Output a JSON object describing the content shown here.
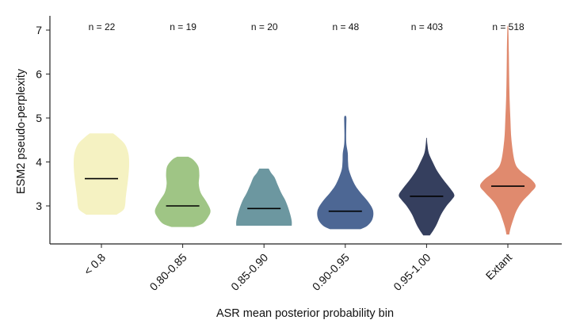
{
  "chart_data": {
    "type": "violin",
    "title": "",
    "xlabel": "ASR mean posterior probability bin",
    "ylabel": "ESM2 pseudo-perplexity",
    "ylim": [
      2.15,
      7.35
    ],
    "yticks": [
      3,
      4,
      5,
      6,
      7
    ],
    "grid": false,
    "categories": [
      "< 0.8",
      "0.80-0.85",
      "0.85-0.90",
      "0.90-0.95",
      "0.95-1.00",
      "Extant"
    ],
    "n_labels": [
      "n = 22",
      "n = 19",
      "n = 20",
      "n = 48",
      "n = 403",
      "n = 518"
    ],
    "colors": [
      "#f5f2c2",
      "#9fc585",
      "#6c97a0",
      "#4d6794",
      "#353f5e",
      "#e08a6e"
    ],
    "series": [
      {
        "category": "< 0.8",
        "median": 3.62,
        "min": 2.8,
        "max": 4.65,
        "profile": [
          [
            2.8,
            0.55
          ],
          [
            2.9,
            0.78
          ],
          [
            3.0,
            0.85
          ],
          [
            3.2,
            0.88
          ],
          [
            3.4,
            0.92
          ],
          [
            3.6,
            0.96
          ],
          [
            3.8,
            0.99
          ],
          [
            4.0,
            1.0
          ],
          [
            4.2,
            0.97
          ],
          [
            4.4,
            0.85
          ],
          [
            4.55,
            0.62
          ],
          [
            4.65,
            0.42
          ]
        ]
      },
      {
        "category": "0.80-0.85",
        "median": 3.0,
        "min": 2.52,
        "max": 4.12,
        "profile": [
          [
            2.52,
            0.4
          ],
          [
            2.6,
            0.72
          ],
          [
            2.75,
            0.92
          ],
          [
            2.9,
            1.0
          ],
          [
            3.1,
            0.85
          ],
          [
            3.3,
            0.65
          ],
          [
            3.5,
            0.58
          ],
          [
            3.7,
            0.6
          ],
          [
            3.9,
            0.56
          ],
          [
            4.05,
            0.38
          ],
          [
            4.12,
            0.2
          ]
        ]
      },
      {
        "category": "0.85-0.90",
        "median": 2.94,
        "min": 2.55,
        "max": 3.85,
        "profile": [
          [
            2.55,
            1.0
          ],
          [
            2.65,
            1.0
          ],
          [
            2.8,
            0.95
          ],
          [
            3.0,
            0.85
          ],
          [
            3.15,
            0.75
          ],
          [
            3.3,
            0.62
          ],
          [
            3.5,
            0.48
          ],
          [
            3.65,
            0.38
          ],
          [
            3.75,
            0.26
          ],
          [
            3.85,
            0.17
          ]
        ]
      },
      {
        "category": "0.90-0.95",
        "median": 2.88,
        "min": 2.47,
        "max": 5.05,
        "profile": [
          [
            2.47,
            0.55
          ],
          [
            2.55,
            0.8
          ],
          [
            2.7,
            0.98
          ],
          [
            2.9,
            1.0
          ],
          [
            3.1,
            0.82
          ],
          [
            3.3,
            0.55
          ],
          [
            3.5,
            0.33
          ],
          [
            3.8,
            0.14
          ],
          [
            4.0,
            0.1
          ],
          [
            4.2,
            0.09
          ],
          [
            4.4,
            0.04
          ],
          [
            4.6,
            0.03
          ],
          [
            4.8,
            0.035
          ],
          [
            5.0,
            0.04
          ],
          [
            5.05,
            0.02
          ]
        ]
      },
      {
        "category": "0.95-1.00",
        "median": 3.22,
        "min": 2.33,
        "max": 4.55,
        "profile": [
          [
            2.33,
            0.12
          ],
          [
            2.45,
            0.25
          ],
          [
            2.6,
            0.38
          ],
          [
            2.8,
            0.52
          ],
          [
            3.0,
            0.72
          ],
          [
            3.15,
            0.92
          ],
          [
            3.25,
            1.0
          ],
          [
            3.4,
            0.85
          ],
          [
            3.6,
            0.6
          ],
          [
            3.8,
            0.38
          ],
          [
            4.0,
            0.22
          ],
          [
            4.2,
            0.08
          ],
          [
            4.4,
            0.03
          ],
          [
            4.55,
            0.01
          ]
        ]
      },
      {
        "category": "Extant",
        "median": 3.45,
        "min": 2.35,
        "max": 7.1,
        "profile": [
          [
            2.35,
            0.05
          ],
          [
            2.5,
            0.1
          ],
          [
            2.7,
            0.2
          ],
          [
            2.9,
            0.32
          ],
          [
            3.1,
            0.52
          ],
          [
            3.3,
            0.82
          ],
          [
            3.45,
            1.0
          ],
          [
            3.6,
            0.85
          ],
          [
            3.8,
            0.45
          ],
          [
            4.0,
            0.25
          ],
          [
            4.5,
            0.13
          ],
          [
            5.0,
            0.09
          ],
          [
            5.5,
            0.06
          ],
          [
            6.0,
            0.045
          ],
          [
            6.5,
            0.035
          ],
          [
            7.0,
            0.02
          ],
          [
            7.1,
            0.01
          ]
        ]
      }
    ]
  }
}
